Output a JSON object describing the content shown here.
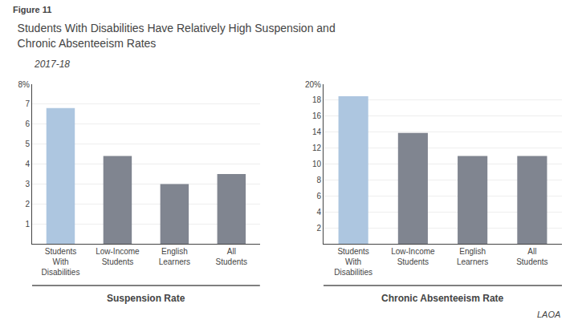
{
  "title": "Students With Disabilities Have Relatively High Suspension and\nChronic Absenteeism Rates",
  "subtitle": "2017-18",
  "annotations": [
    "Figure 11",
    "LAOA"
  ],
  "chart_data": [
    {
      "type": "bar",
      "title": "Suspension Rate",
      "categories": [
        "Students\nWith\nDisabilities",
        "Low-Income\nStudents",
        "English\nLearners",
        "All\nStudents"
      ],
      "values": [
        6.8,
        4.4,
        3.0,
        3.5
      ],
      "colors": [
        "#adc6e0",
        "#808590",
        "#808590",
        "#808590"
      ],
      "ylim": [
        0,
        8
      ],
      "yticks": [
        1,
        2,
        3,
        4,
        5,
        6,
        7,
        {
          "value": 8,
          "label": "8%"
        }
      ],
      "grid": true
    },
    {
      "type": "bar",
      "title": "Chronic Absenteeism Rate",
      "categories": [
        "Students\nWith\nDisabilities",
        "Low-Income\nStudents",
        "English\nLearners",
        "All\nStudents"
      ],
      "values": [
        18.5,
        13.9,
        11.0,
        11.0
      ],
      "colors": [
        "#adc6e0",
        "#808590",
        "#808590",
        "#808590"
      ],
      "ylim": [
        0,
        20
      ],
      "yticks": [
        2,
        4,
        6,
        8,
        10,
        12,
        14,
        16,
        18,
        {
          "value": 20,
          "label": "20%"
        }
      ],
      "grid": true
    }
  ]
}
